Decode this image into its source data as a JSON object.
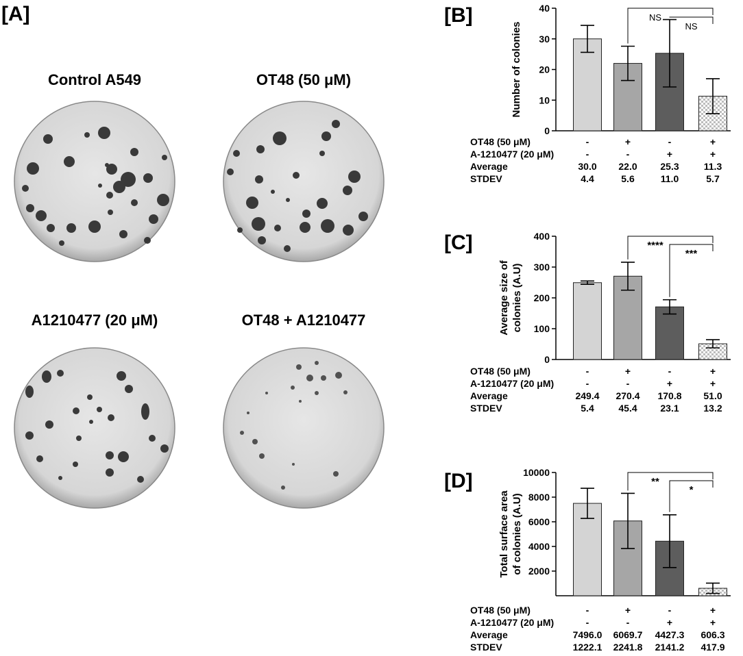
{
  "panel_a": {
    "label": "[A]",
    "plates": [
      {
        "title": "Control A549"
      },
      {
        "title": "OT48 (50 μM)"
      },
      {
        "title": "A1210477 (20 μM)"
      },
      {
        "title": "OT48 + A1210477"
      }
    ]
  },
  "colors": {
    "bar_fills": [
      "#d4d4d4",
      "#a6a6a6",
      "#5d5d5d",
      "checker"
    ],
    "checker_light": "#ffffff",
    "checker_dark": "#bdbdbd",
    "plate_bg": "#dcdcdc",
    "colony": "#2c2c2c"
  },
  "chart_data": [
    {
      "type": "bar",
      "panel_label": "[B]",
      "ylabel_lines": [
        "Number of colonies"
      ],
      "ylim": [
        0,
        40
      ],
      "yticks": [
        0,
        10,
        20,
        30,
        40
      ],
      "values": [
        30.0,
        22.0,
        25.3,
        11.3
      ],
      "errors": [
        4.4,
        5.6,
        11.0,
        5.7
      ],
      "table": [
        {
          "label": "OT48 (50 μM)",
          "cells": [
            "-",
            "+",
            "-",
            "+"
          ]
        },
        {
          "label": "A-1210477 (20 μM)",
          "cells": [
            "-",
            "-",
            "+",
            "+"
          ]
        },
        {
          "label": "Average",
          "cells": [
            "30.0",
            "22.0",
            "25.3",
            "11.3"
          ]
        },
        {
          "label": "STDEV",
          "cells": [
            "4.4",
            "5.6",
            "11.0",
            "5.7"
          ]
        }
      ],
      "significance": [
        {
          "from": 1,
          "to": 3,
          "label": "NS",
          "style": "normal"
        },
        {
          "from": 2,
          "to": 3,
          "label": "NS",
          "style": "normal"
        }
      ]
    },
    {
      "type": "bar",
      "panel_label": "[C]",
      "ylabel_lines": [
        "Average size of",
        "colonies (A.U)"
      ],
      "ylim": [
        0,
        400
      ],
      "yticks": [
        0,
        100,
        200,
        300,
        400
      ],
      "values": [
        249.4,
        270.4,
        170.8,
        51.0
      ],
      "errors": [
        5.4,
        45.4,
        23.1,
        13.2
      ],
      "table": [
        {
          "label": "OT48 (50 μM)",
          "cells": [
            "-",
            "+",
            "-",
            "+"
          ]
        },
        {
          "label": "A-1210477 (20 μM)",
          "cells": [
            "-",
            "-",
            "+",
            "+"
          ]
        },
        {
          "label": "Average",
          "cells": [
            "249.4",
            "270.4",
            "170.8",
            "51.0"
          ]
        },
        {
          "label": "STDEV",
          "cells": [
            "5.4",
            "45.4",
            "23.1",
            "13.2"
          ]
        }
      ],
      "significance": [
        {
          "from": 1,
          "to": 3,
          "label": "****",
          "style": "bold"
        },
        {
          "from": 2,
          "to": 3,
          "label": "***",
          "style": "bold"
        }
      ]
    },
    {
      "type": "bar",
      "panel_label": "[D]",
      "ylabel_lines": [
        "Total surface area",
        "of colonies (A.U)"
      ],
      "ylim": [
        0,
        10000
      ],
      "yticks": [
        2000,
        4000,
        6000,
        8000,
        10000
      ],
      "values": [
        7496.0,
        6069.7,
        4427.3,
        606.3
      ],
      "errors": [
        1222.1,
        2241.8,
        2141.2,
        417.9
      ],
      "table": [
        {
          "label": "OT48 (50 μM)",
          "cells": [
            "-",
            "+",
            "-",
            "+"
          ]
        },
        {
          "label": "A-1210477 (20 μM)",
          "cells": [
            "-",
            "-",
            "+",
            "+"
          ]
        },
        {
          "label": "Average",
          "cells": [
            "7496.0",
            "6069.7",
            "4427.3",
            "606.3"
          ]
        },
        {
          "label": "STDEV",
          "cells": [
            "1222.1",
            "2241.8",
            "2141.2",
            "417.9"
          ]
        }
      ],
      "significance": [
        {
          "from": 1,
          "to": 3,
          "label": "**",
          "style": "bold"
        },
        {
          "from": 2,
          "to": 3,
          "label": "*",
          "style": "bold"
        }
      ]
    }
  ]
}
